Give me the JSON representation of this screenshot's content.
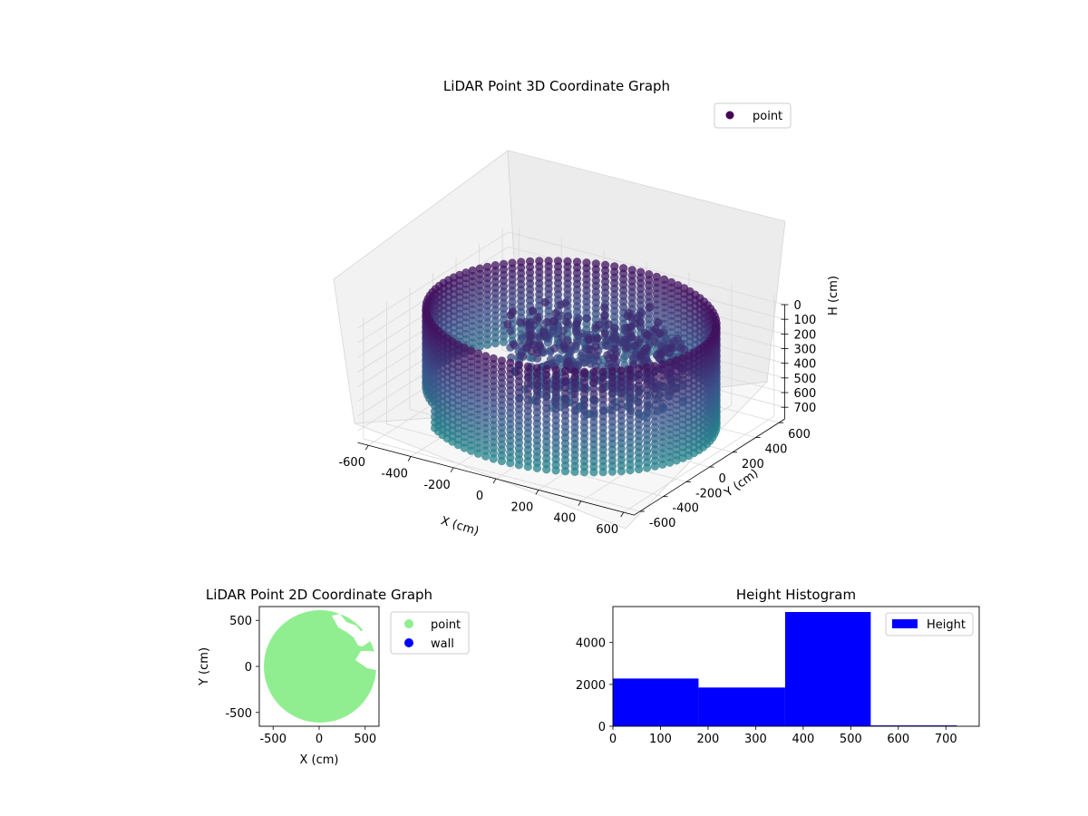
{
  "chart_data": [
    {
      "type": "scatter",
      "title": "LiDAR Point 3D Coordinate Graph",
      "xlabel": "X (cm)",
      "ylabel": "Y (cm)",
      "zlabel": "H (cm)",
      "x_ticks": [
        -600,
        -400,
        -200,
        0,
        200,
        400,
        600
      ],
      "y_ticks": [
        -600,
        -400,
        -200,
        0,
        200,
        400,
        600
      ],
      "z_ticks": [
        0,
        100,
        200,
        300,
        400,
        500,
        600,
        700
      ],
      "xlim": [
        -650,
        650
      ],
      "ylim": [
        -650,
        650
      ],
      "zlim": [
        780,
        0
      ],
      "z_inverted": true,
      "colormap": "viridis",
      "legend": {
        "entries": [
          "point"
        ],
        "placement": "top-right"
      },
      "series": [
        {
          "name": "point",
          "description_shape": "cylindrical wall ring of radius ~600 with interior structures",
          "wall_radius": 600,
          "wall_height_range": [
            0,
            720
          ]
        }
      ],
      "grid": true
    },
    {
      "type": "scatter",
      "title": "LiDAR Point 2D Coordinate Graph",
      "xlabel": "X (cm)",
      "ylabel": "Y (cm)",
      "x_ticks": [
        -500,
        0,
        500
      ],
      "y_ticks": [
        -500,
        0,
        500
      ],
      "xlim": [
        -650,
        650
      ],
      "ylim": [
        -650,
        650
      ],
      "legend": {
        "entries": [
          "point",
          "wall"
        ],
        "placement": "right"
      },
      "series": [
        {
          "name": "point",
          "color": "#90ee90"
        },
        {
          "name": "wall",
          "color": "#0000ff"
        }
      ],
      "grid": false
    },
    {
      "type": "bar",
      "title": "Height Histogram",
      "x_ticks": [
        0,
        100,
        200,
        300,
        400,
        500,
        600,
        700
      ],
      "y_ticks": [
        0,
        2000,
        4000
      ],
      "xlim": [
        0,
        770
      ],
      "ylim": [
        0,
        5720
      ],
      "bins": [
        {
          "from": 0,
          "to": 180,
          "value": 2280
        },
        {
          "from": 180,
          "to": 362,
          "value": 1850
        },
        {
          "from": 362,
          "to": 542,
          "value": 5460
        },
        {
          "from": 542,
          "to": 723,
          "value": 40
        }
      ],
      "legend": {
        "entries": [
          "Height"
        ],
        "placement": "top-right"
      },
      "series": [
        {
          "name": "Height",
          "color": "#0000ff"
        }
      ],
      "grid": false
    }
  ]
}
